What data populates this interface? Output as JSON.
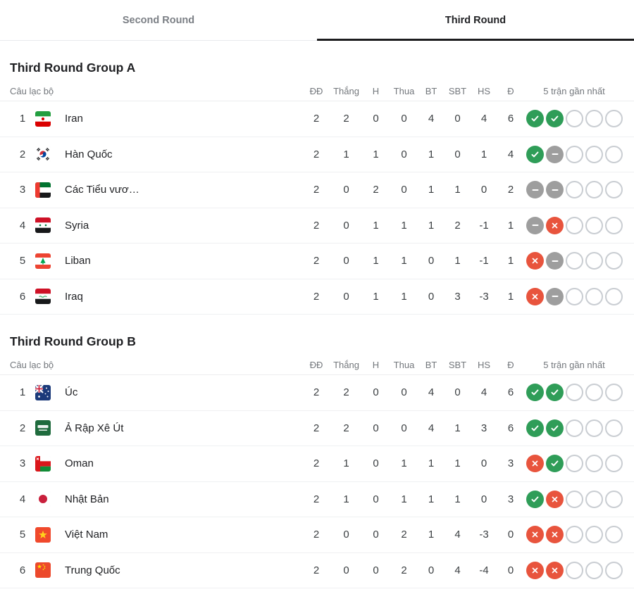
{
  "tabs": [
    {
      "label": "Second Round",
      "active": false
    },
    {
      "label": "Third Round",
      "active": true
    }
  ],
  "columns": {
    "club": "Câu lạc bộ",
    "stats": [
      "ĐĐ",
      "Thắng",
      "H",
      "Thua",
      "BT",
      "SBT",
      "HS",
      "Đ"
    ],
    "form": "5 trận gần nhất"
  },
  "colors": {
    "win": "#2f9d58",
    "draw": "#9e9e9e",
    "loss": "#e8543d",
    "tab_active": "#202124",
    "tab_inactive": "#7b7f85"
  },
  "groups": [
    {
      "title": "Third Round Group A",
      "rows": [
        {
          "pos": "1",
          "flag": "iran",
          "name": "Iran",
          "stats": [
            "2",
            "2",
            "0",
            "0",
            "4",
            "0",
            "4",
            "6"
          ],
          "form": [
            "W",
            "W",
            "E",
            "E",
            "E"
          ]
        },
        {
          "pos": "2",
          "flag": "south-korea",
          "name": "Hàn Quốc",
          "stats": [
            "2",
            "1",
            "1",
            "0",
            "1",
            "0",
            "1",
            "4"
          ],
          "form": [
            "W",
            "D",
            "E",
            "E",
            "E"
          ]
        },
        {
          "pos": "3",
          "flag": "uae",
          "name": "Các Tiểu vươ…",
          "stats": [
            "2",
            "0",
            "2",
            "0",
            "1",
            "1",
            "0",
            "2"
          ],
          "form": [
            "D",
            "D",
            "E",
            "E",
            "E"
          ]
        },
        {
          "pos": "4",
          "flag": "syria",
          "name": "Syria",
          "stats": [
            "2",
            "0",
            "1",
            "1",
            "1",
            "2",
            "-1",
            "1"
          ],
          "form": [
            "D",
            "L",
            "E",
            "E",
            "E"
          ]
        },
        {
          "pos": "5",
          "flag": "lebanon",
          "name": "Liban",
          "stats": [
            "2",
            "0",
            "1",
            "1",
            "0",
            "1",
            "-1",
            "1"
          ],
          "form": [
            "L",
            "D",
            "E",
            "E",
            "E"
          ]
        },
        {
          "pos": "6",
          "flag": "iraq",
          "name": "Iraq",
          "stats": [
            "2",
            "0",
            "1",
            "1",
            "0",
            "3",
            "-3",
            "1"
          ],
          "form": [
            "L",
            "D",
            "E",
            "E",
            "E"
          ]
        }
      ]
    },
    {
      "title": "Third Round Group B",
      "rows": [
        {
          "pos": "1",
          "flag": "australia",
          "name": "Úc",
          "stats": [
            "2",
            "2",
            "0",
            "0",
            "4",
            "0",
            "4",
            "6"
          ],
          "form": [
            "W",
            "W",
            "E",
            "E",
            "E"
          ]
        },
        {
          "pos": "2",
          "flag": "saudi-arabia",
          "name": "Ả Rập Xê Út",
          "stats": [
            "2",
            "2",
            "0",
            "0",
            "4",
            "1",
            "3",
            "6"
          ],
          "form": [
            "W",
            "W",
            "E",
            "E",
            "E"
          ]
        },
        {
          "pos": "3",
          "flag": "oman",
          "name": "Oman",
          "stats": [
            "2",
            "1",
            "0",
            "1",
            "1",
            "1",
            "0",
            "3"
          ],
          "form": [
            "L",
            "W",
            "E",
            "E",
            "E"
          ]
        },
        {
          "pos": "4",
          "flag": "japan",
          "name": "Nhật Bản",
          "stats": [
            "2",
            "1",
            "0",
            "1",
            "1",
            "1",
            "0",
            "3"
          ],
          "form": [
            "W",
            "L",
            "E",
            "E",
            "E"
          ]
        },
        {
          "pos": "5",
          "flag": "vietnam",
          "name": "Việt Nam",
          "stats": [
            "2",
            "0",
            "0",
            "2",
            "1",
            "4",
            "-3",
            "0"
          ],
          "form": [
            "L",
            "L",
            "E",
            "E",
            "E"
          ]
        },
        {
          "pos": "6",
          "flag": "china",
          "name": "Trung Quốc",
          "stats": [
            "2",
            "0",
            "0",
            "2",
            "0",
            "4",
            "-4",
            "0"
          ],
          "form": [
            "L",
            "L",
            "E",
            "E",
            "E"
          ]
        }
      ]
    }
  ]
}
